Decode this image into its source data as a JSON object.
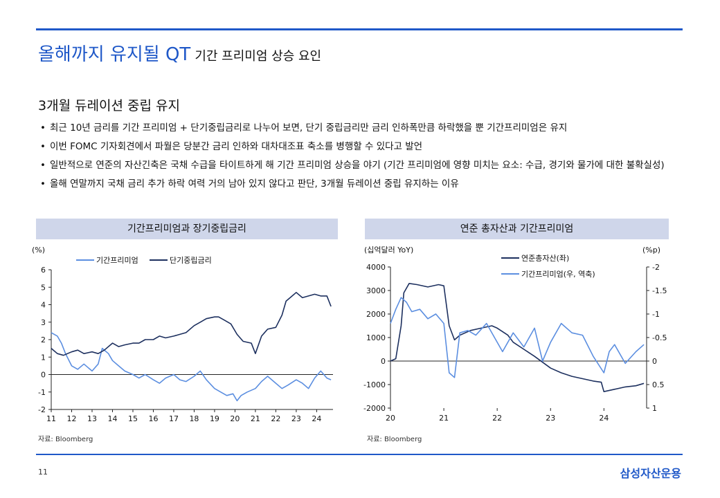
{
  "header": {
    "title_main": "올해까지 유지될 QT",
    "title_sub": "기간 프리미엄 상승 요인"
  },
  "section": {
    "heading": "3개월 듀레이션 중립 유지"
  },
  "bullets": [
    "최근 10년 금리를 기간 프리미엄 + 단기중립금리로 나누어 보면, 단기 중립금리만 금리 인하폭만큼 하락했을 뿐 기간프리미엄은 유지",
    "이번 FOMC 기자회견에서 파월은 당분간 금리 인하와 대차대조표 축소를 병행할 수 있다고 발언",
    "일반적으로 연준의 자산긴축은 국채 수급을 타이트하게 해 기간 프리미엄 상승을 야기 (기간 프리미엄에 영향 미치는 요소: 수급, 경기와 물가에 대한 불확실성)",
    "올해 연말까지 국채 금리 추가 하락 여력 거의 남아 있지 않다고 판단, 3개월 듀레이션 중립 유지하는 이유"
  ],
  "chart_data": [
    {
      "type": "line",
      "title": "기간프리미엄과 장기중립금리",
      "ylabel": "(%)",
      "ylim": [
        -2,
        6
      ],
      "yticks": [
        "-2",
        "-1",
        "0",
        "1",
        "2",
        "3",
        "4",
        "5",
        "6"
      ],
      "xlim": [
        11,
        24.8
      ],
      "xticks": [
        "11",
        "12",
        "13",
        "14",
        "15",
        "16",
        "17",
        "18",
        "19",
        "20",
        "21",
        "22",
        "23",
        "24"
      ],
      "legend": "top",
      "source": "자료: Bloomberg",
      "series": [
        {
          "name": "기간프리미엄",
          "color": "#5b8ee0",
          "x": [
            11.0,
            11.3,
            11.5,
            11.7,
            12.0,
            12.3,
            12.6,
            13.0,
            13.3,
            13.5,
            13.8,
            14.0,
            14.3,
            14.6,
            15.0,
            15.3,
            15.6,
            16.0,
            16.3,
            16.6,
            17.0,
            17.3,
            17.6,
            18.0,
            18.3,
            18.6,
            19.0,
            19.3,
            19.6,
            19.9,
            20.1,
            20.3,
            20.6,
            21.0,
            21.3,
            21.6,
            22.0,
            22.3,
            22.6,
            23.0,
            23.3,
            23.6,
            23.9,
            24.2,
            24.5,
            24.7
          ],
          "y": [
            2.4,
            2.2,
            1.8,
            1.2,
            0.5,
            0.3,
            0.6,
            0.2,
            0.6,
            1.5,
            1.2,
            0.8,
            0.5,
            0.2,
            0.0,
            -0.2,
            0.0,
            -0.3,
            -0.5,
            -0.2,
            0.0,
            -0.3,
            -0.4,
            -0.1,
            0.2,
            -0.3,
            -0.8,
            -1.0,
            -1.2,
            -1.1,
            -1.5,
            -1.2,
            -1.0,
            -0.8,
            -0.4,
            -0.1,
            -0.5,
            -0.8,
            -0.6,
            -0.3,
            -0.5,
            -0.8,
            -0.2,
            0.2,
            -0.2,
            -0.3
          ]
        },
        {
          "name": "단기중립금리",
          "color": "#1c2f5e",
          "x": [
            11.0,
            11.3,
            11.6,
            12.0,
            12.3,
            12.6,
            13.0,
            13.3,
            13.6,
            14.0,
            14.3,
            14.6,
            15.0,
            15.3,
            15.6,
            16.0,
            16.3,
            16.6,
            17.0,
            17.3,
            17.6,
            18.0,
            18.3,
            18.6,
            19.0,
            19.2,
            19.5,
            19.8,
            20.1,
            20.4,
            20.8,
            21.0,
            21.3,
            21.6,
            22.0,
            22.3,
            22.5,
            22.8,
            23.0,
            23.3,
            23.6,
            23.9,
            24.2,
            24.5,
            24.7
          ],
          "y": [
            1.5,
            1.2,
            1.1,
            1.3,
            1.4,
            1.2,
            1.3,
            1.2,
            1.4,
            1.8,
            1.6,
            1.7,
            1.8,
            1.8,
            2.0,
            2.0,
            2.2,
            2.1,
            2.2,
            2.3,
            2.4,
            2.8,
            3.0,
            3.2,
            3.3,
            3.3,
            3.1,
            2.9,
            2.3,
            1.9,
            1.8,
            1.2,
            2.2,
            2.6,
            2.7,
            3.4,
            4.2,
            4.5,
            4.7,
            4.4,
            4.5,
            4.6,
            4.5,
            4.5,
            3.9
          ]
        }
      ]
    },
    {
      "type": "line",
      "title": "연준 총자산과 기간프리미엄",
      "ylabel_left": "(십억달러 YoY)",
      "ylabel_right": "(%p)",
      "ylim_left": [
        -2000,
        4000
      ],
      "yticks_left": [
        "4000",
        "3000",
        "2000",
        "1000",
        "0",
        "-1000",
        "-2000"
      ],
      "ylim_right": [
        1,
        -2
      ],
      "yticks_right": [
        "-2",
        "-1.5",
        "-1",
        "-0.5",
        "0",
        "0.5",
        "1"
      ],
      "xlim": [
        20,
        24.8
      ],
      "xticks": [
        "20",
        "21",
        "22",
        "23",
        "24"
      ],
      "legend": "top-right",
      "source": "자료: Bloomberg",
      "series": [
        {
          "name": "연준총자산(좌)",
          "axis": "left",
          "color": "#1c2f5e",
          "x": [
            20.0,
            20.1,
            20.2,
            20.25,
            20.35,
            20.5,
            20.7,
            20.9,
            21.0,
            21.1,
            21.2,
            21.3,
            21.5,
            21.7,
            21.9,
            22.0,
            22.2,
            22.3,
            22.5,
            22.7,
            23.0,
            23.2,
            23.4,
            23.6,
            23.8,
            23.95,
            24.0,
            24.2,
            24.4,
            24.6,
            24.75
          ],
          "y": [
            0,
            100,
            1500,
            2900,
            3300,
            3250,
            3150,
            3250,
            3200,
            1500,
            900,
            1100,
            1300,
            1400,
            1500,
            1400,
            1100,
            800,
            500,
            200,
            -300,
            -500,
            -650,
            -750,
            -850,
            -900,
            -1300,
            -1200,
            -1100,
            -1050,
            -950
          ]
        },
        {
          "name": "기간프리미엄(우, 역축)",
          "axis": "right",
          "color": "#5b8ee0",
          "x": [
            20.0,
            20.1,
            20.2,
            20.3,
            20.4,
            20.55,
            20.7,
            20.85,
            21.0,
            21.1,
            21.2,
            21.3,
            21.45,
            21.6,
            21.8,
            21.95,
            22.1,
            22.3,
            22.5,
            22.7,
            22.85,
            23.0,
            23.2,
            23.4,
            23.6,
            23.8,
            24.0,
            24.1,
            24.2,
            24.4,
            24.6,
            24.75
          ],
          "y": [
            -0.8,
            -1.1,
            -1.35,
            -1.25,
            -1.05,
            -1.1,
            -0.9,
            -1.0,
            -0.8,
            0.25,
            0.35,
            -0.6,
            -0.65,
            -0.55,
            -0.8,
            -0.5,
            -0.2,
            -0.6,
            -0.3,
            -0.7,
            0.0,
            -0.4,
            -0.8,
            -0.6,
            -0.55,
            -0.1,
            0.25,
            -0.2,
            -0.35,
            0.05,
            -0.2,
            -0.35
          ]
        }
      ]
    }
  ],
  "footer": {
    "page": "11",
    "brand": "삼성자산운용"
  }
}
